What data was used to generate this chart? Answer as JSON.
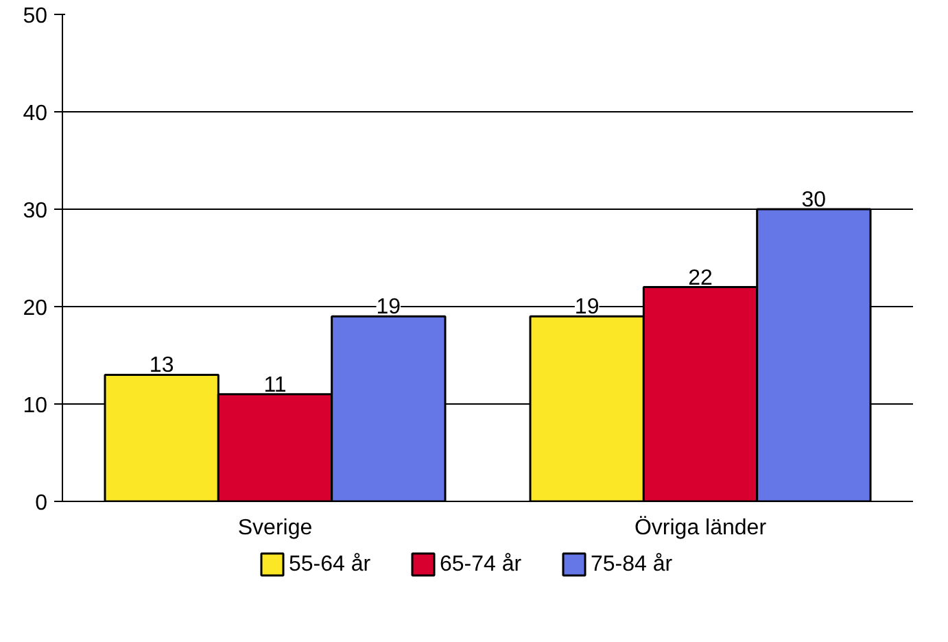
{
  "chart_data": {
    "type": "bar",
    "categories": [
      "Sverige",
      "Övriga länder"
    ],
    "series": [
      {
        "name": "55-64 år",
        "color": "#fce726",
        "values": [
          13,
          19
        ]
      },
      {
        "name": "65-74 år",
        "color": "#d8002e",
        "values": [
          11,
          22
        ]
      },
      {
        "name": "75-84 år",
        "color": "#6576e6",
        "values": [
          19,
          30
        ]
      }
    ],
    "ylim": [
      0,
      50
    ],
    "yticks": [
      0,
      10,
      20,
      30,
      40,
      50
    ],
    "grid": "y",
    "legend": "bottom",
    "data_labels": true
  }
}
